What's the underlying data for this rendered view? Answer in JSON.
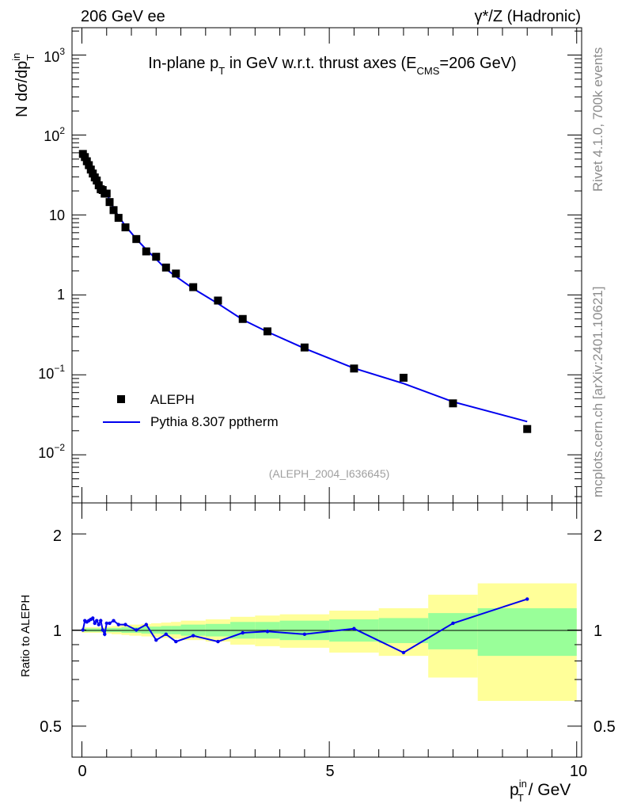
{
  "header": {
    "left": "206 GeV ee",
    "right": "γ*/Z (Hadronic)"
  },
  "side_text": {
    "rivet": "Rivet 4.1.0,  700k events",
    "source": "mcplots.cern.ch [arXiv:2401.10621]"
  },
  "chart_data": [
    {
      "type": "scatter",
      "title_parts": {
        "pre": "In-plane p",
        "sub1": "T",
        "mid": " in GeV w.r.t. thrust axes (E",
        "sub2": "CMS",
        "post": "=206 GeV)"
      },
      "ylabel_parts": {
        "pre": "N  dσ/dp",
        "sup": "in",
        "sub": "T"
      },
      "yscale": "log",
      "ylim": [
        0.0025,
        2200
      ],
      "xlim": [
        -0.2,
        10.1
      ],
      "y_ticks": [
        {
          "value": 1000,
          "base": "10",
          "exp": "3"
        },
        {
          "value": 100,
          "base": "10",
          "exp": "2"
        },
        {
          "value": 10,
          "base": "10",
          "exp": ""
        },
        {
          "value": 1,
          "base": "1",
          "exp": ""
        },
        {
          "value": 0.1,
          "base": "10",
          "exp": "−1"
        },
        {
          "value": 0.01,
          "base": "10",
          "exp": "−2"
        }
      ],
      "watermark": "(ALEPH_2004_I636645)",
      "legend": {
        "position": "lower-left",
        "entries": [
          "ALEPH",
          "Pythia 8.307 pptherm"
        ]
      },
      "series": [
        {
          "name": "ALEPH",
          "style": "markers",
          "color": "#000000",
          "x": [
            0.02,
            0.06,
            0.1,
            0.14,
            0.18,
            0.22,
            0.26,
            0.3,
            0.34,
            0.38,
            0.42,
            0.46,
            0.5,
            0.56,
            0.64,
            0.74,
            0.88,
            1.1,
            1.3,
            1.5,
            1.7,
            1.9,
            2.25,
            2.75,
            3.25,
            3.75,
            4.5,
            5.5,
            6.5,
            7.5,
            9.0
          ],
          "y": [
            58.0,
            53.0,
            47.0,
            42.0,
            37.0,
            33.0,
            29.5,
            27.0,
            23.5,
            21.0,
            20.5,
            18.5,
            18.5,
            14.5,
            11.5,
            9.2,
            7.0,
            5.0,
            3.5,
            3.0,
            2.2,
            1.85,
            1.25,
            0.85,
            0.5,
            0.35,
            0.22,
            0.12,
            0.092,
            0.044,
            0.021
          ]
        },
        {
          "name": "Pythia 8.307 pptherm",
          "style": "line",
          "color": "#0000ee",
          "x": [
            0.02,
            0.06,
            0.1,
            0.14,
            0.18,
            0.22,
            0.26,
            0.3,
            0.34,
            0.38,
            0.42,
            0.46,
            0.5,
            0.56,
            0.64,
            0.74,
            0.88,
            1.1,
            1.3,
            1.5,
            1.7,
            1.9,
            2.25,
            2.75,
            3.25,
            3.75,
            4.5,
            5.5,
            6.5,
            7.5,
            9.0
          ],
          "y": [
            58.0,
            56.5,
            50.0,
            45.0,
            40.0,
            36.0,
            31.0,
            29.0,
            24.5,
            22.5,
            20.5,
            18.0,
            19.5,
            15.2,
            12.3,
            9.6,
            7.3,
            5.0,
            3.7,
            2.8,
            2.1,
            1.7,
            1.2,
            0.78,
            0.49,
            0.345,
            0.214,
            0.121,
            0.078,
            0.046,
            0.026
          ]
        }
      ]
    },
    {
      "type": "line",
      "ylabel": "Ratio to ALEPH",
      "xlabel_parts": {
        "pre": "p",
        "sup": "in",
        "sub": "T",
        "post": " / GeV"
      },
      "yscale": "log",
      "ylim": [
        0.4,
        2.5
      ],
      "xlim": [
        -0.2,
        10.1
      ],
      "x_ticks": [
        {
          "value": 0,
          "label": "0"
        },
        {
          "value": 5,
          "label": "5"
        },
        {
          "value": 10,
          "label": "10"
        }
      ],
      "y_ticks": [
        {
          "value": 2,
          "label": "2"
        },
        {
          "value": 1,
          "label": "1"
        },
        {
          "value": 0.5,
          "label": "0.5"
        }
      ],
      "reference_line": 1,
      "bands": {
        "edges": [
          0.0,
          0.04,
          0.08,
          0.12,
          0.16,
          0.2,
          0.24,
          0.28,
          0.32,
          0.36,
          0.4,
          0.44,
          0.48,
          0.52,
          0.6,
          0.68,
          0.8,
          0.96,
          1.2,
          1.4,
          1.6,
          1.8,
          2.0,
          2.5,
          3.0,
          3.5,
          4.0,
          5.0,
          6.0,
          7.0,
          8.0,
          10.0
        ],
        "inner_color": "#99ff99",
        "outer_color": "#ffff99",
        "inner_halfwidth": [
          0.012,
          0.012,
          0.012,
          0.012,
          0.012,
          0.012,
          0.012,
          0.012,
          0.012,
          0.012,
          0.012,
          0.012,
          0.015,
          0.015,
          0.015,
          0.015,
          0.02,
          0.02,
          0.025,
          0.025,
          0.03,
          0.03,
          0.04,
          0.045,
          0.06,
          0.06,
          0.07,
          0.08,
          0.09,
          0.13,
          0.17
        ],
        "outer_halfwidth": [
          0.02,
          0.02,
          0.02,
          0.02,
          0.02,
          0.02,
          0.02,
          0.02,
          0.02,
          0.02,
          0.02,
          0.02,
          0.025,
          0.025,
          0.03,
          0.03,
          0.035,
          0.04,
          0.045,
          0.05,
          0.055,
          0.06,
          0.07,
          0.08,
          0.1,
          0.11,
          0.12,
          0.15,
          0.17,
          0.29,
          0.4
        ]
      },
      "series": [
        {
          "name": "Pythia 8.307 pptherm / ALEPH",
          "color": "#0000ee",
          "x": [
            0.02,
            0.06,
            0.1,
            0.14,
            0.18,
            0.22,
            0.26,
            0.3,
            0.34,
            0.38,
            0.42,
            0.46,
            0.5,
            0.56,
            0.64,
            0.74,
            0.88,
            1.1,
            1.3,
            1.5,
            1.7,
            1.9,
            2.25,
            2.75,
            3.25,
            3.75,
            4.5,
            5.5,
            6.5,
            7.5,
            9.0
          ],
          "y": [
            1.0,
            1.07,
            1.06,
            1.07,
            1.08,
            1.09,
            1.05,
            1.07,
            1.04,
            1.07,
            1.0,
            0.97,
            1.05,
            1.05,
            1.07,
            1.04,
            1.04,
            1.0,
            1.04,
            0.93,
            0.97,
            0.92,
            0.96,
            0.92,
            0.98,
            0.99,
            0.97,
            1.01,
            0.85,
            1.05,
            1.25
          ]
        }
      ]
    }
  ]
}
